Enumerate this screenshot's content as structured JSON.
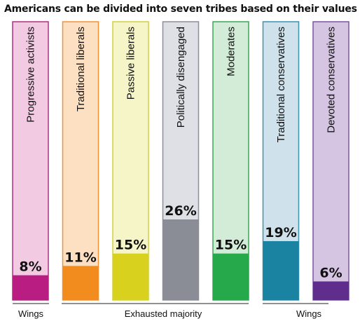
{
  "chart_data": {
    "type": "bar",
    "title": "Americans can be divided into seven tribes based on their values",
    "categories": [
      "Progressive activists",
      "Traditional liberals",
      "Passive liberals",
      "Politically disengaged",
      "Moderates",
      "Traditional conservatives",
      "Devoted conservatives"
    ],
    "values": [
      8,
      11,
      15,
      26,
      15,
      19,
      6
    ],
    "value_labels": [
      "8%",
      "11%",
      "15%",
      "26%",
      "15%",
      "19%",
      "6%"
    ],
    "unit": "%",
    "colors": {
      "fill": [
        "#b91d82",
        "#f28c1f",
        "#d8d21f",
        "#8a8d95",
        "#25a94a",
        "#1a83a1",
        "#5f2e8d"
      ],
      "background": [
        "#f2cbe3",
        "#fde0c1",
        "#f6f5c8",
        "#dfe0e6",
        "#d2ecd7",
        "#cfe2ec",
        "#d5c4e2"
      ],
      "border": [
        "#b12f84",
        "#f29235",
        "#d2d040",
        "#8c8f9a",
        "#3aa756",
        "#3c91b0",
        "#7b54a4"
      ]
    },
    "groups": [
      {
        "label": "Wings",
        "categories": [
          "Progressive activists"
        ]
      },
      {
        "label": "Exhausted majority",
        "categories": [
          "Traditional liberals",
          "Passive liberals",
          "Politically disengaged",
          "Moderates"
        ]
      },
      {
        "label": "Wings",
        "categories": [
          "Traditional conservatives",
          "Devoted conservatives"
        ]
      }
    ]
  }
}
